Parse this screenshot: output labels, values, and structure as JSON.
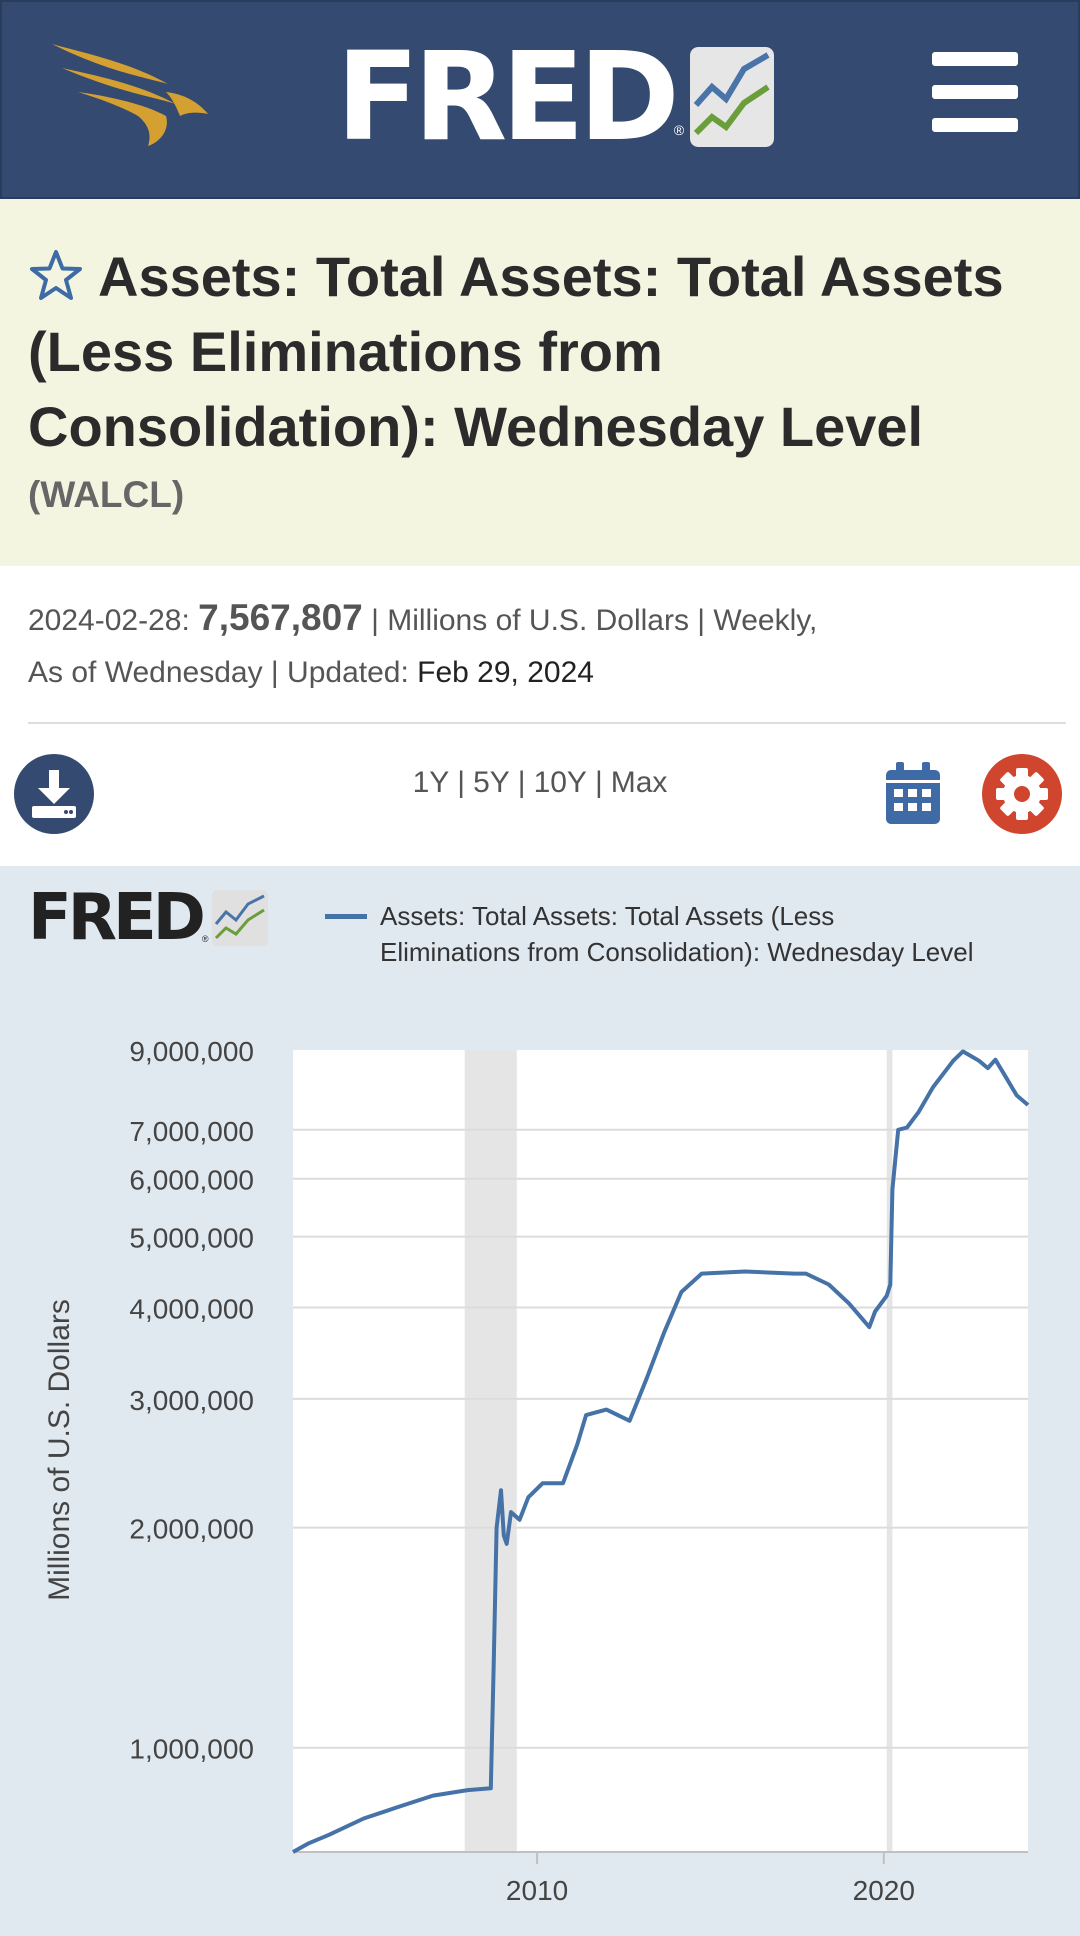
{
  "header": {
    "logo_text": "FRED",
    "logo_reg": "®",
    "menu_icon": "hamburger-menu-icon",
    "eagle_color": "#d4a031",
    "bg_color": "#354a70"
  },
  "series": {
    "title": "Assets: Total Assets: Total Assets (Less Eliminations from Consolidation): Wednesday Level",
    "id": "(WALCL)"
  },
  "meta": {
    "date": "2024-02-28:",
    "value": "7,567,807",
    "units": "| Millions of U.S. Dollars | Weekly,",
    "frequency": "As of Wednesday | Updated:",
    "updated": "Feb 29, 2024"
  },
  "toolbar": {
    "ranges": [
      "1Y",
      "5Y",
      "10Y",
      "Max"
    ],
    "separator": "|",
    "download_icon": "download-icon",
    "calendar_icon": "calendar-icon",
    "gear_icon": "gear-icon"
  },
  "chart_logo": {
    "text": "FRED",
    "reg": "®"
  },
  "chart_data": {
    "type": "line",
    "title": "",
    "legend": [
      "Assets: Total Assets: Total Assets (Less Eliminations from Consolidation): Wednesday Level"
    ],
    "legend_position": "top",
    "ylabel": "Millions of U.S. Dollars",
    "xlabel": "",
    "y_scale": "log",
    "ylim": [
      720000,
      9000000
    ],
    "xlim": [
      "2002-12-18",
      "2024-02-28"
    ],
    "y_ticks": [
      1000000,
      2000000,
      3000000,
      4000000,
      5000000,
      6000000,
      7000000,
      9000000
    ],
    "y_tick_labels": [
      "1,000,000",
      "2,000,000",
      "3,000,000",
      "4,000,000",
      "5,000,000",
      "6,000,000",
      "7,000,000",
      "9,000,000"
    ],
    "x_ticks": [
      "2010",
      "2020"
    ],
    "grid": true,
    "recessions": [
      [
        "2007-12-01",
        "2009-06-01"
      ],
      [
        "2020-02-01",
        "2020-04-01"
      ]
    ],
    "series": [
      {
        "name": "Assets: Total Assets: Total Assets (Less Eliminations from Consolidation): Wednesday Level",
        "color": "#4572a7",
        "points": [
          [
            "2002-12-18",
            720000
          ],
          [
            "2003-06-01",
            740000
          ],
          [
            "2004-01-01",
            760000
          ],
          [
            "2005-01-01",
            800000
          ],
          [
            "2006-01-01",
            830000
          ],
          [
            "2007-01-01",
            860000
          ],
          [
            "2008-01-01",
            875000
          ],
          [
            "2008-09-01",
            880000
          ],
          [
            "2008-10-01",
            1300000
          ],
          [
            "2008-11-01",
            2000000
          ],
          [
            "2008-12-17",
            2250000
          ],
          [
            "2009-01-15",
            1950000
          ],
          [
            "2009-02-15",
            1900000
          ],
          [
            "2009-04-01",
            2100000
          ],
          [
            "2009-07-01",
            2050000
          ],
          [
            "2009-10-01",
            2200000
          ],
          [
            "2010-03-01",
            2300000
          ],
          [
            "2010-10-01",
            2300000
          ],
          [
            "2011-03-01",
            2600000
          ],
          [
            "2011-06-01",
            2850000
          ],
          [
            "2012-01-01",
            2900000
          ],
          [
            "2012-09-01",
            2800000
          ],
          [
            "2013-03-01",
            3200000
          ],
          [
            "2013-09-01",
            3700000
          ],
          [
            "2014-03-01",
            4200000
          ],
          [
            "2014-10-01",
            4450000
          ],
          [
            "2016-01-01",
            4480000
          ],
          [
            "2017-06-01",
            4450000
          ],
          [
            "2017-10-01",
            4450000
          ],
          [
            "2018-06-01",
            4300000
          ],
          [
            "2019-01-01",
            4050000
          ],
          [
            "2019-08-01",
            3760000
          ],
          [
            "2019-10-01",
            3950000
          ],
          [
            "2020-02-01",
            4150000
          ],
          [
            "2020-03-10",
            4300000
          ],
          [
            "2020-04-01",
            5800000
          ],
          [
            "2020-06-01",
            7000000
          ],
          [
            "2020-09-01",
            7050000
          ],
          [
            "2021-01-01",
            7400000
          ],
          [
            "2021-06-01",
            8000000
          ],
          [
            "2022-01-01",
            8700000
          ],
          [
            "2022-04-13",
            8960000
          ],
          [
            "2022-10-01",
            8700000
          ],
          [
            "2023-01-01",
            8500000
          ],
          [
            "2023-03-22",
            8730000
          ],
          [
            "2023-07-01",
            8300000
          ],
          [
            "2023-11-01",
            7800000
          ],
          [
            "2024-02-28",
            7567807
          ]
        ]
      }
    ]
  }
}
